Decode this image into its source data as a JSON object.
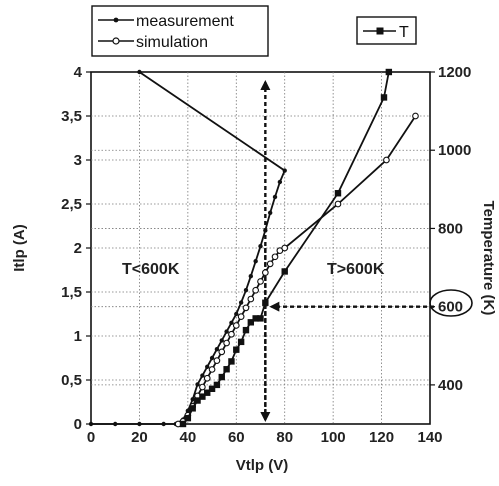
{
  "chart_data": {
    "type": "line",
    "xlabel": "Vtlp (V)",
    "ylabel": "Itlp (A)",
    "y2label": "Temperature (K)",
    "xlim": [
      0,
      140
    ],
    "ylim": [
      0,
      4
    ],
    "y2lim": [
      300,
      1200
    ],
    "x_ticks": [
      "0",
      "20",
      "40",
      "60",
      "80",
      "100",
      "120",
      "140"
    ],
    "y_ticks": [
      "0",
      "0,5",
      "1",
      "1,5",
      "2",
      "2,5",
      "3",
      "3,5",
      "4"
    ],
    "y2_ticks": [
      "400",
      "600",
      "800",
      "1000",
      "1200"
    ],
    "grid": true,
    "legend": {
      "left": [
        "measurement",
        "simulation"
      ],
      "right": [
        "T"
      ]
    },
    "annotations": {
      "left_region": "T<600K",
      "right_region": "T>600K",
      "circled": "600"
    },
    "series": [
      {
        "name": "measurement",
        "axis": "left",
        "marker": "dot",
        "x": [
          0,
          10,
          20,
          30,
          35,
          38,
          40,
          42,
          44,
          46,
          48,
          50,
          52,
          54,
          56,
          58,
          60,
          62,
          64,
          66,
          68,
          70,
          72,
          74,
          76,
          78,
          80,
          20
        ],
        "y": [
          0,
          0,
          0,
          0,
          0,
          0.05,
          0.15,
          0.28,
          0.45,
          0.55,
          0.65,
          0.75,
          0.85,
          0.95,
          1.05,
          1.15,
          1.25,
          1.38,
          1.52,
          1.68,
          1.85,
          2.02,
          2.2,
          2.4,
          2.58,
          2.75,
          2.88,
          4.0
        ]
      },
      {
        "name": "simulation",
        "axis": "left",
        "marker": "open-circle",
        "x": [
          36,
          38,
          40,
          42,
          44,
          46,
          48,
          50,
          52,
          54,
          56,
          58,
          60,
          62,
          64,
          66,
          68,
          70,
          72,
          74,
          76,
          78,
          80,
          102,
          122,
          134
        ],
        "y": [
          0,
          0.03,
          0.1,
          0.2,
          0.32,
          0.42,
          0.52,
          0.62,
          0.72,
          0.82,
          0.92,
          1.02,
          1.12,
          1.22,
          1.32,
          1.42,
          1.52,
          1.62,
          1.72,
          1.82,
          1.9,
          1.97,
          2.0,
          2.5,
          3.0,
          3.5
        ]
      },
      {
        "name": "T",
        "axis": "right",
        "marker": "filled-square",
        "x": [
          38,
          40,
          42,
          44,
          46,
          48,
          50,
          52,
          54,
          56,
          58,
          60,
          62,
          64,
          66,
          68,
          70,
          72,
          80,
          102,
          121,
          123
        ],
        "y": [
          300,
          315,
          340,
          360,
          370,
          380,
          390,
          400,
          420,
          440,
          460,
          490,
          510,
          540,
          560,
          570,
          570,
          610,
          690,
          890,
          1135,
          1200
        ]
      }
    ],
    "guides": {
      "vertical_x": 72,
      "horizontal_y2": 600
    }
  }
}
